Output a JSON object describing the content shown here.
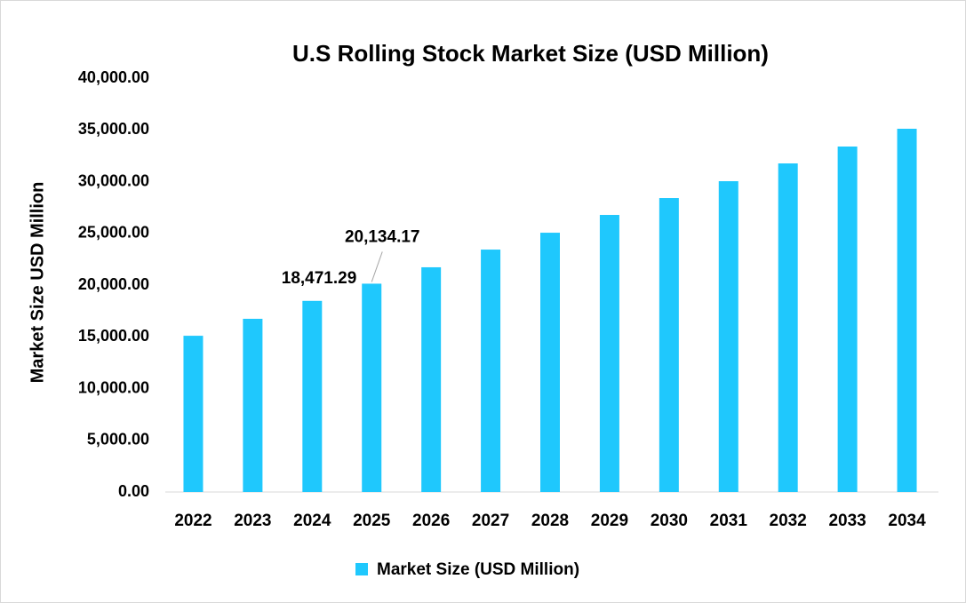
{
  "chart_data": {
    "type": "bar",
    "title": "U.S Rolling Stock Market Size (USD Million)",
    "y_label": "Market Size USD Million",
    "categories": [
      "2022",
      "2023",
      "2024",
      "2025",
      "2026",
      "2027",
      "2028",
      "2029",
      "2030",
      "2031",
      "2032",
      "2033",
      "2034"
    ],
    "series": [
      {
        "name": "Market Size (USD Million)",
        "color": "#1fc8fd",
        "values": [
          15100,
          16740,
          18471.29,
          20134.17,
          21720,
          23430,
          25060,
          26780,
          28410,
          30040,
          31760,
          33390,
          35110
        ],
        "value_labels": [
          null,
          null,
          "18,471.29",
          "20,134.17",
          null,
          null,
          null,
          null,
          null,
          null,
          null,
          null,
          null
        ]
      }
    ],
    "ylim": [
      0,
      40000
    ],
    "yticks": [
      {
        "value": 0,
        "label": "0.00"
      },
      {
        "value": 5000,
        "label": "5,000.00"
      },
      {
        "value": 10000,
        "label": "10,000.00"
      },
      {
        "value": 15000,
        "label": "15,000.00"
      },
      {
        "value": 20000,
        "label": "20,000.00"
      },
      {
        "value": 25000,
        "label": "25,000.00"
      },
      {
        "value": 30000,
        "label": "30,000.00"
      },
      {
        "value": 35000,
        "label": "35,000.00"
      },
      {
        "value": 40000,
        "label": "40,000.00"
      }
    ],
    "grid": false,
    "legend": "bottom"
  }
}
